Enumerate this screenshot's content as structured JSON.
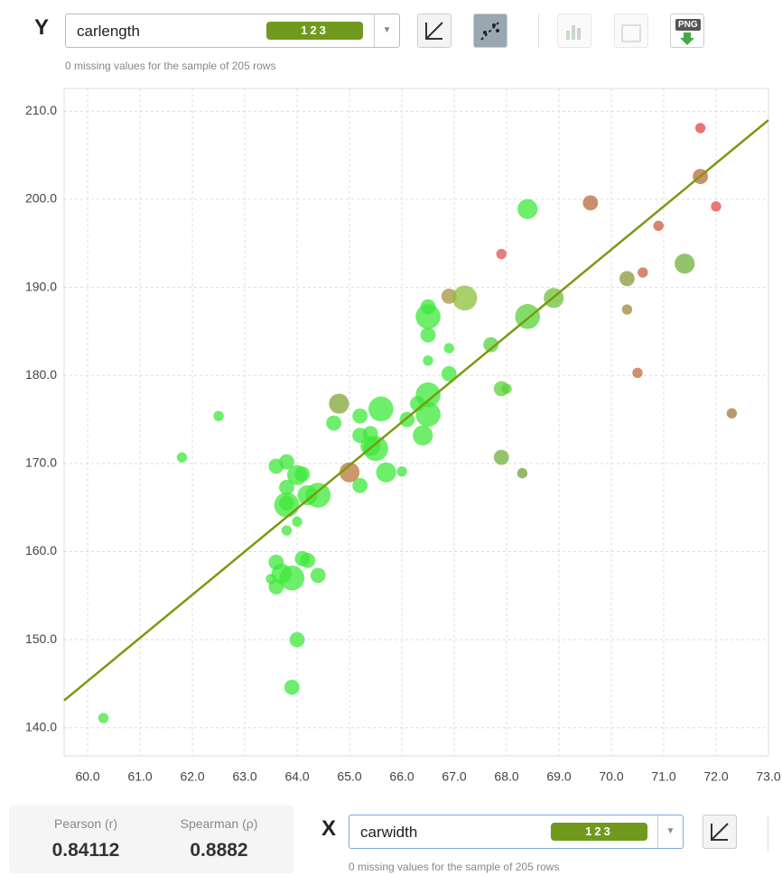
{
  "y_selector": {
    "axis_letter": "Y",
    "field": "carlength",
    "badge": "123",
    "note": "0 missing values for the sample of 205 rows"
  },
  "toolbar": {
    "png_label": "PNG"
  },
  "x_selector": {
    "axis_letter": "X",
    "field": "carwidth",
    "badge": "123",
    "note": "0 missing values for the sample of 205 rows"
  },
  "stats": {
    "pearson_label": "Pearson (r)",
    "pearson_value": "0.84112",
    "spearman_label": "Spearman (ρ)",
    "spearman_value": "0.8882"
  },
  "chart_data": {
    "type": "scatter",
    "x": [
      60.3,
      61.8,
      62.5,
      63.5,
      63.6,
      63.6,
      63.7,
      63.9,
      63.6,
      63.8,
      63.8,
      63.8,
      63.8,
      63.8,
      64.0,
      63.9,
      64.0,
      64.0,
      64.1,
      64.2,
      64.4,
      64.1,
      64.2,
      64.4,
      64.7,
      64.8,
      65.0,
      65.2,
      65.2,
      65.2,
      65.4,
      65.4,
      65.5,
      65.6,
      65.7,
      66.0,
      66.1,
      66.3,
      66.4,
      66.5,
      66.5,
      66.5,
      66.5,
      66.5,
      66.5,
      66.9,
      66.9,
      66.9,
      67.2,
      67.7,
      67.9,
      68.0,
      67.9,
      67.9,
      68.3,
      68.4,
      68.4,
      68.9,
      69.6,
      70.3,
      70.3,
      70.5,
      70.6,
      70.9,
      71.4,
      71.7,
      71.7,
      72.0,
      72.3
    ],
    "y": [
      141.1,
      170.7,
      175.4,
      156.9,
      158.8,
      156.0,
      157.5,
      157.0,
      169.7,
      170.2,
      167.3,
      165.5,
      165.3,
      162.4,
      163.4,
      144.6,
      150.0,
      168.7,
      168.8,
      166.4,
      166.4,
      159.2,
      159.0,
      157.3,
      174.6,
      176.8,
      169.0,
      175.4,
      173.2,
      167.5,
      173.4,
      172.0,
      171.7,
      176.2,
      169.0,
      169.1,
      175.0,
      176.8,
      173.2,
      177.8,
      175.6,
      186.7,
      187.8,
      184.6,
      181.7,
      189.0,
      183.1,
      180.2,
      188.8,
      183.5,
      178.5,
      178.5,
      170.7,
      193.8,
      168.9,
      198.9,
      186.7,
      188.8,
      199.6,
      191.0,
      187.5,
      180.3,
      191.7,
      197.0,
      192.7,
      208.1,
      202.6,
      199.2,
      175.7
    ],
    "sizes": [
      1,
      1,
      1,
      1,
      2,
      2,
      3,
      4,
      2,
      2,
      2,
      2,
      4,
      1,
      1,
      2,
      2,
      3,
      2,
      3,
      4,
      2,
      2,
      2,
      2,
      3,
      3,
      2,
      2,
      2,
      2,
      3,
      4,
      4,
      3,
      1,
      2,
      2,
      3,
      4,
      4,
      4,
      2,
      2,
      1,
      2,
      1,
      2,
      4,
      2,
      2,
      1,
      2,
      1,
      1,
      3,
      4,
      3,
      2,
      2,
      1,
      1,
      1,
      1,
      3,
      1,
      2,
      1,
      1
    ],
    "colors": [
      "#3ee83a",
      "#3ee83a",
      "#3ee83a",
      "#3ee83a",
      "#3ee83a",
      "#3ee83a",
      "#3ee83a",
      "#3ee83a",
      "#3ee83a",
      "#3ee83a",
      "#3ee83a",
      "#3ee83a",
      "#3ee83a",
      "#3ee83a",
      "#3ee83a",
      "#3ee83a",
      "#3ee83a",
      "#3ee83a",
      "#3ee83a",
      "#3ee83a",
      "#3ee83a",
      "#3ee83a",
      "#3ee83a",
      "#3ee83a",
      "#3ee83a",
      "#7fa63a",
      "#b8763a",
      "#3ee83a",
      "#3ee83a",
      "#3ee83a",
      "#3ee83a",
      "#3ee83a",
      "#3ee83a",
      "#3ee83a",
      "#3ee83a",
      "#3ee83a",
      "#3ee83a",
      "#3ee83a",
      "#3ee83a",
      "#3ee83a",
      "#3ee83a",
      "#3ee83a",
      "#3ee83a",
      "#3ee83a",
      "#3ee83a",
      "#a89040",
      "#3ee83a",
      "#3ee83a",
      "#8cc03a",
      "#5ad23a",
      "#5ad23a",
      "#5ad23a",
      "#6fb03a",
      "#e05050",
      "#6fa03a",
      "#3ee83a",
      "#5ad23a",
      "#6fc03a",
      "#b86a3a",
      "#8a9a3a",
      "#9a8a3a",
      "#c06a40",
      "#c86040",
      "#d05a40",
      "#6fb03a",
      "#e04848",
      "#b86a3a",
      "#e84848",
      "#a07a3a"
    ],
    "trend_line": {
      "x": [
        59.55,
        73.0
      ],
      "y": [
        143.1,
        209.0
      ]
    },
    "trend_color": "#7a9a10",
    "xlim": [
      59.55,
      73.0
    ],
    "ylim": [
      136.8,
      212.6
    ],
    "xticks": [
      {
        "value": 60,
        "label": "60.0"
      },
      {
        "value": 61,
        "label": "61.0"
      },
      {
        "value": 62,
        "label": "62.0"
      },
      {
        "value": 63,
        "label": "63.0"
      },
      {
        "value": 64,
        "label": "64.0"
      },
      {
        "value": 65,
        "label": "65.0"
      },
      {
        "value": 66,
        "label": "66.0"
      },
      {
        "value": 67,
        "label": "67.0"
      },
      {
        "value": 68,
        "label": "68.0"
      },
      {
        "value": 69,
        "label": "69.0"
      },
      {
        "value": 70,
        "label": "70.0"
      },
      {
        "value": 71,
        "label": "71.0"
      },
      {
        "value": 72,
        "label": "72.0"
      },
      {
        "value": 73,
        "label": "73.0"
      }
    ],
    "yticks": [
      {
        "value": 140,
        "label": "140.0"
      },
      {
        "value": 150,
        "label": "150.0"
      },
      {
        "value": 160,
        "label": "160.0"
      },
      {
        "value": 170,
        "label": "170.0"
      },
      {
        "value": 180,
        "label": "180.0"
      },
      {
        "value": 190,
        "label": "190.0"
      },
      {
        "value": 200,
        "label": "200.0"
      },
      {
        "value": 210,
        "label": "210.0"
      }
    ],
    "grid": true
  }
}
